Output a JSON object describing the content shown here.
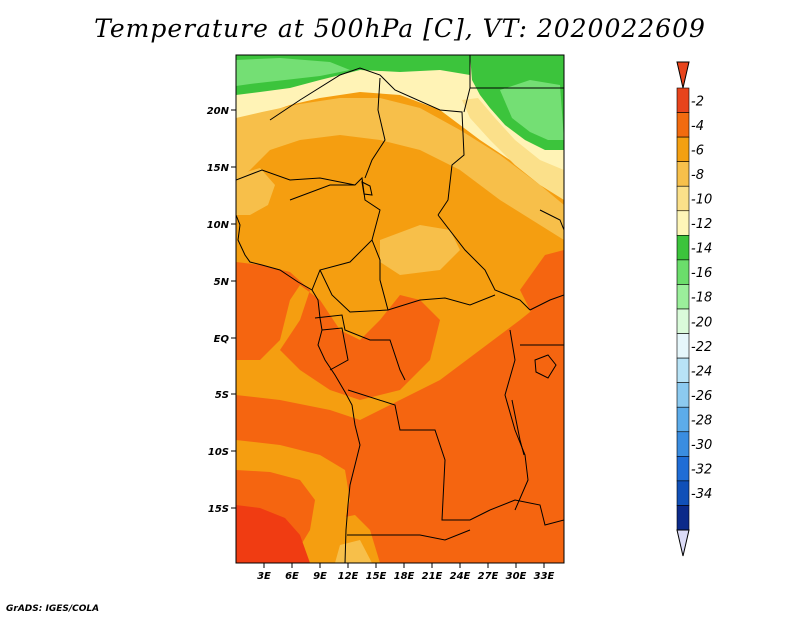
{
  "title": "Temperature at 500hPa [C], VT: 2020022609",
  "credit": "GrADS: IGES/COLA",
  "lat_labels": [
    "20N",
    "15N",
    "10N",
    "5N",
    "EQ",
    "5S",
    "10S",
    "15S"
  ],
  "lon_labels": [
    "3E",
    "6E",
    "9E",
    "12E",
    "15E",
    "18E",
    "21E",
    "24E",
    "27E",
    "30E",
    "33E"
  ],
  "colorbar": {
    "labels": [
      "-2",
      "-4",
      "-6",
      "-8",
      "-10",
      "-12",
      "-14",
      "-16",
      "-18",
      "-20",
      "-22",
      "-24",
      "-26",
      "-28",
      "-30",
      "-32",
      "-34"
    ],
    "colors": [
      "#e8441c",
      "#f26b0f",
      "#f4a012",
      "#f7c04b",
      "#fbe08a",
      "#fef6b8",
      "#3cc43c",
      "#6bdd6b",
      "#9bef9b",
      "#dafbda",
      "#e6f7fb",
      "#b8e3f6",
      "#8ccaf0",
      "#5cacea",
      "#3a8de0",
      "#1f6dd6",
      "#1050b8",
      "#0b2a8a",
      "#0a0a66"
    ],
    "top_color": "#e8441c",
    "bottom_color": "#dcdcf7"
  },
  "map_colors": {
    "warm_red": "#f03c12",
    "red_orange": "#f56510",
    "orange": "#f59e10",
    "light_orange": "#f7bf4a",
    "yellow": "#fbe08a",
    "pale_yellow": "#fff3b6",
    "green": "#3cc43c",
    "light_green": "#74df74"
  }
}
